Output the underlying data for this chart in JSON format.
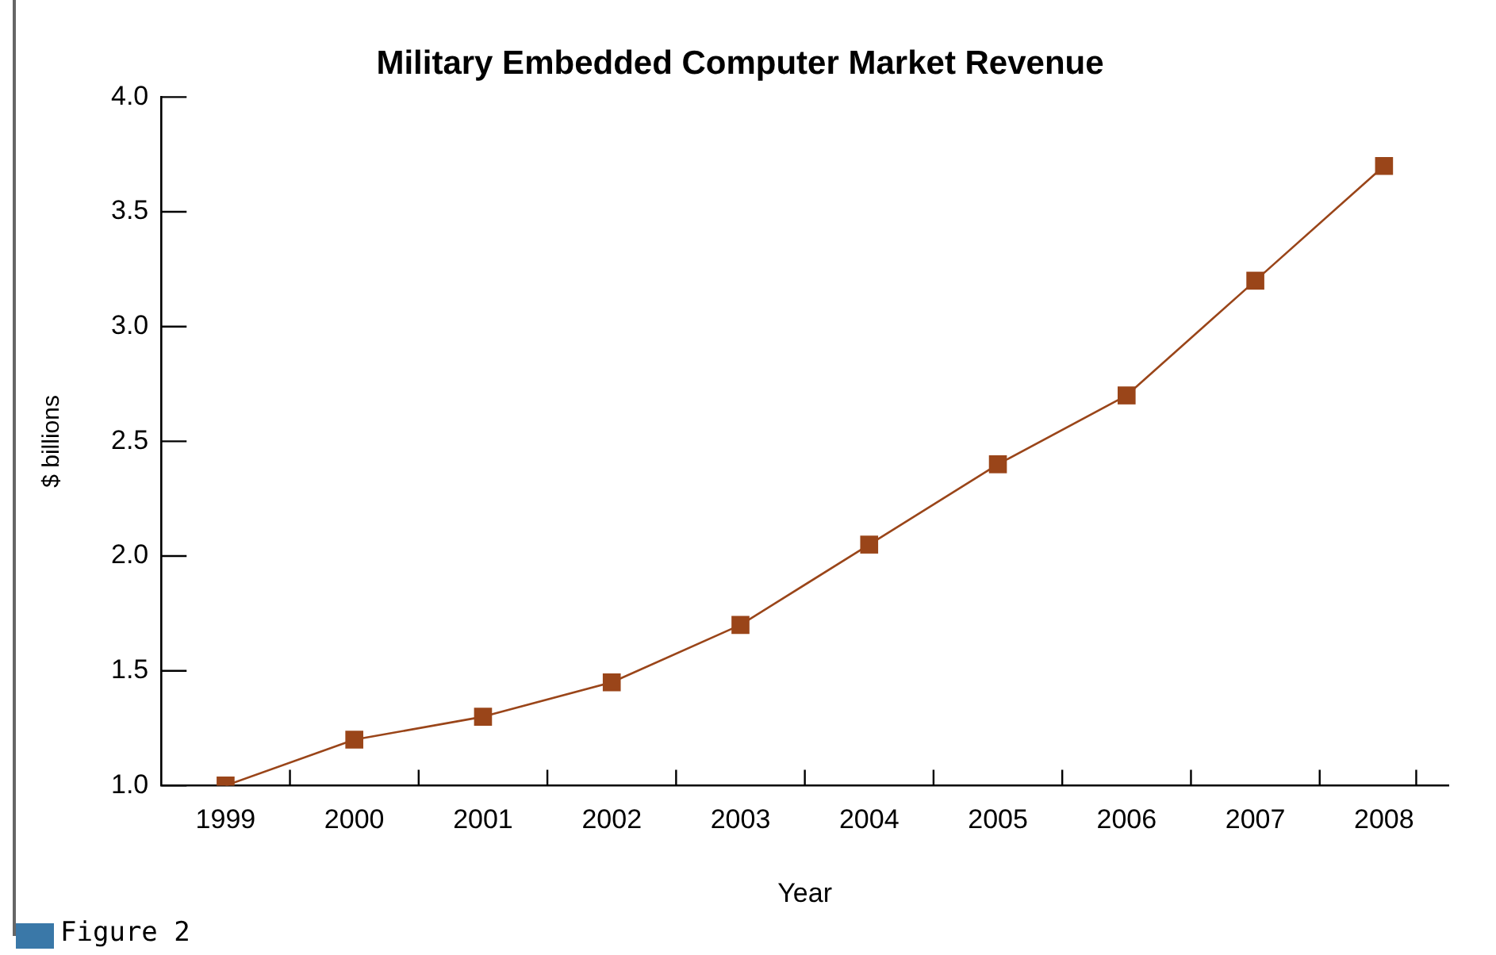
{
  "chart_data": {
    "type": "line",
    "title": "Military Embedded Computer Market Revenue",
    "xlabel": "Year",
    "ylabel": "$ billions",
    "categories": [
      "1999",
      "2000",
      "2001",
      "2002",
      "2003",
      "2004",
      "2005",
      "2006",
      "2007",
      "2008"
    ],
    "series": [
      {
        "color": "#9a4519",
        "values": [
          1.0,
          1.2,
          1.3,
          1.45,
          1.7,
          2.05,
          2.4,
          2.7,
          3.2,
          3.7
        ]
      }
    ],
    "ylim": [
      1.0,
      4.0
    ],
    "yticks": [
      {
        "value": 1.0,
        "label": "1.0"
      },
      {
        "value": 1.5,
        "label": "1.5"
      },
      {
        "value": 2.0,
        "label": "2.0"
      },
      {
        "value": 2.5,
        "label": "2.5"
      },
      {
        "value": 3.0,
        "label": "3.0"
      },
      {
        "value": 3.5,
        "label": "3.5"
      },
      {
        "value": 4.0,
        "label": "4.0"
      }
    ],
    "grid": false,
    "legend": false,
    "marker": "square",
    "line_style": "solid",
    "annotations": [
      "Figure 2"
    ]
  }
}
